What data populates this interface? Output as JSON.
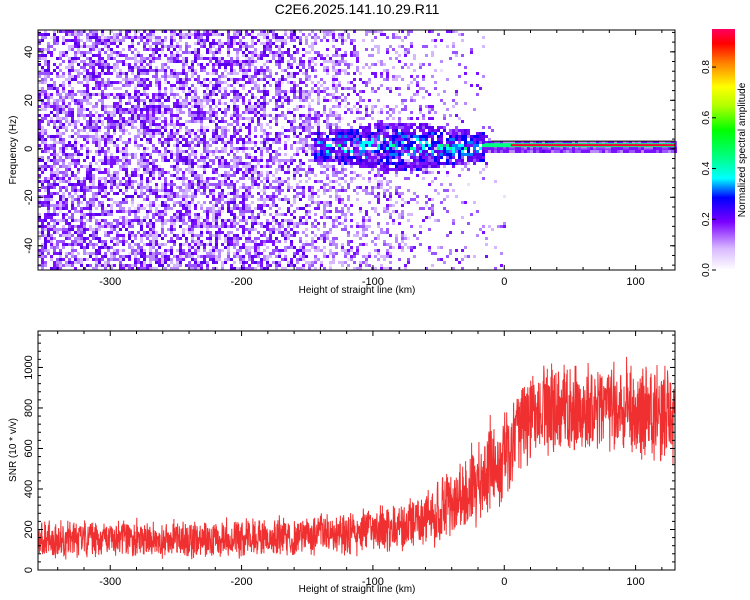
{
  "title": "C2E6.2025.141.10.29.R11",
  "chart_data": [
    {
      "type": "heatmap",
      "xlabel": "Height of straight line (km)",
      "ylabel": "Frequency (Hz)",
      "xlim": [
        -355,
        130
      ],
      "ylim": [
        -50,
        49
      ],
      "x_ticks": [
        -300,
        -200,
        -100,
        0,
        100
      ],
      "x_tick_labels": [
        "-300",
        "-200",
        "-100",
        "0",
        "100"
      ],
      "y_ticks": [
        -40,
        -20,
        0,
        20,
        40
      ],
      "y_tick_labels": [
        "-40",
        "-20",
        "0",
        "20",
        "40"
      ],
      "carrier_frequency_hz": 1.5,
      "colorbar": {
        "label": "Normalized spectral amplitude",
        "range": [
          0,
          0.95
        ],
        "ticks": [
          0.0,
          0.2,
          0.4,
          0.6,
          0.8
        ],
        "tick_labels": [
          "0.0",
          "0.2",
          "0.4",
          "0.6",
          "0.8"
        ]
      }
    },
    {
      "type": "line",
      "xlabel": "Height of straight line (km)",
      "ylabel": "SNR (10 * v/v)",
      "xlim": [
        -355,
        130
      ],
      "ylim": [
        0,
        1180
      ],
      "x_ticks": [
        -300,
        -200,
        -100,
        0,
        100
      ],
      "x_tick_labels": [
        "-300",
        "-200",
        "-100",
        "0",
        "100"
      ],
      "y_ticks": [
        0,
        200,
        400,
        600,
        800,
        1000
      ],
      "y_tick_labels": [
        "0",
        "200",
        "400",
        "600",
        "800",
        "1000"
      ],
      "series_color": "#f03030",
      "envelope": {
        "x": [
          -355,
          -300,
          -250,
          -200,
          -150,
          -120,
          -100,
          -80,
          -60,
          -40,
          -20,
          -10,
          0,
          10,
          20,
          40,
          60,
          80,
          100,
          130
        ],
        "mean": [
          150,
          160,
          150,
          160,
          170,
          180,
          200,
          220,
          260,
          330,
          430,
          500,
          560,
          660,
          760,
          800,
          790,
          800,
          790,
          760
        ],
        "spread": [
          90,
          90,
          90,
          90,
          95,
          100,
          110,
          120,
          140,
          170,
          200,
          220,
          230,
          230,
          220,
          210,
          210,
          220,
          230,
          230
        ]
      }
    }
  ]
}
